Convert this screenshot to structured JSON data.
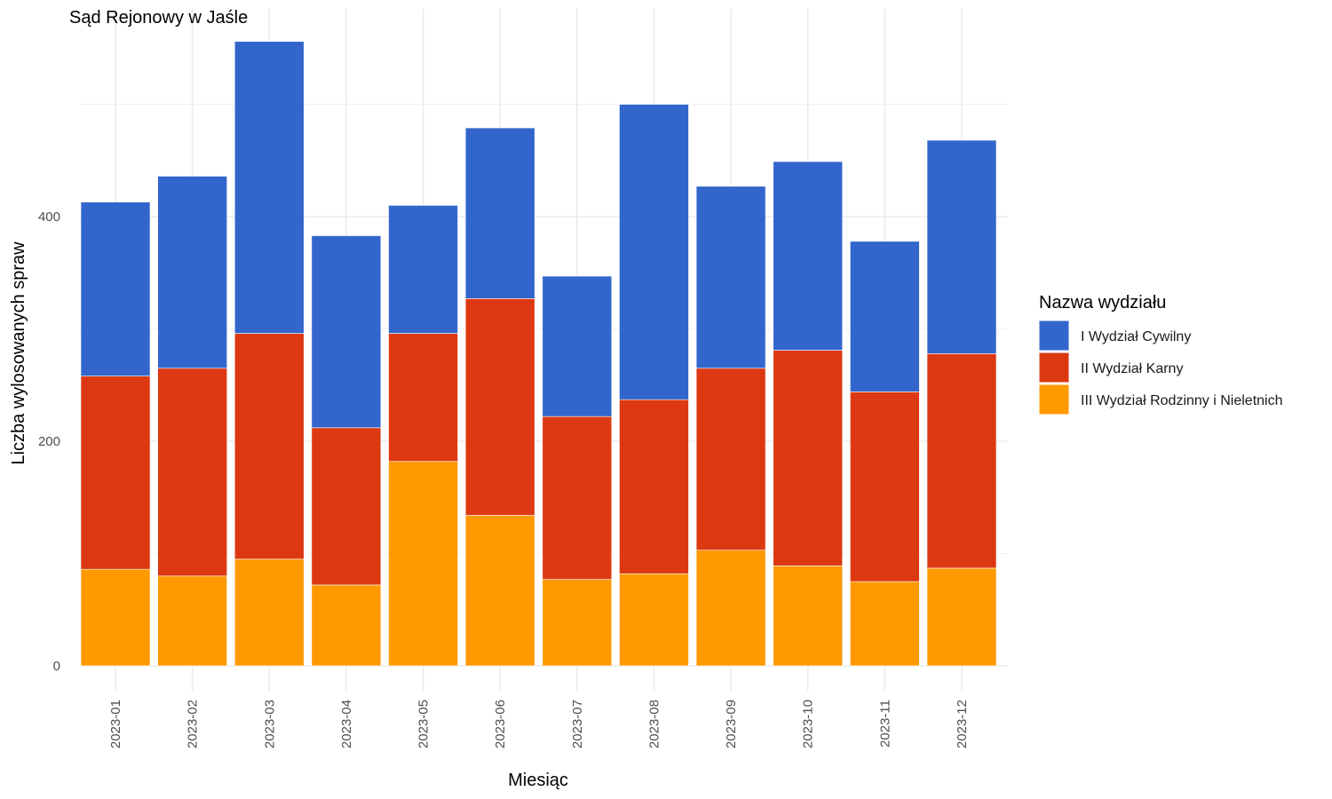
{
  "chart_data": {
    "type": "bar",
    "stacked": true,
    "title": "Sąd Rejonowy w Jaśle",
    "xlabel": "Miesiąc",
    "ylabel": "Liczba wylosowanych spraw",
    "categories": [
      "2023-01",
      "2023-02",
      "2023-03",
      "2023-04",
      "2023-05",
      "2023-06",
      "2023-07",
      "2023-08",
      "2023-09",
      "2023-10",
      "2023-11",
      "2023-12"
    ],
    "series": [
      {
        "name": "III Wydział Rodzinny i Nieletnich",
        "color": "#ff9900",
        "values": [
          86,
          80,
          95,
          72,
          182,
          134,
          77,
          82,
          103,
          89,
          75,
          87
        ]
      },
      {
        "name": "II Wydział Karny",
        "color": "#dc3912",
        "values": [
          172,
          185,
          201,
          140,
          114,
          193,
          145,
          155,
          162,
          192,
          169,
          191
        ]
      },
      {
        "name": "I Wydział Cywilny",
        "color": "#3366cc",
        "values": [
          155,
          171,
          260,
          171,
          114,
          152,
          125,
          263,
          162,
          168,
          134,
          190
        ]
      }
    ],
    "ylim": [
      0,
      580
    ],
    "yticks": [
      0,
      200,
      400
    ],
    "grid": true,
    "legend": {
      "title": "Nazwa wydziału",
      "position": "right",
      "items": [
        "I Wydział Cywilny",
        "II Wydział Karny",
        "III Wydział Rodzinny i Nieletnich"
      ]
    }
  }
}
